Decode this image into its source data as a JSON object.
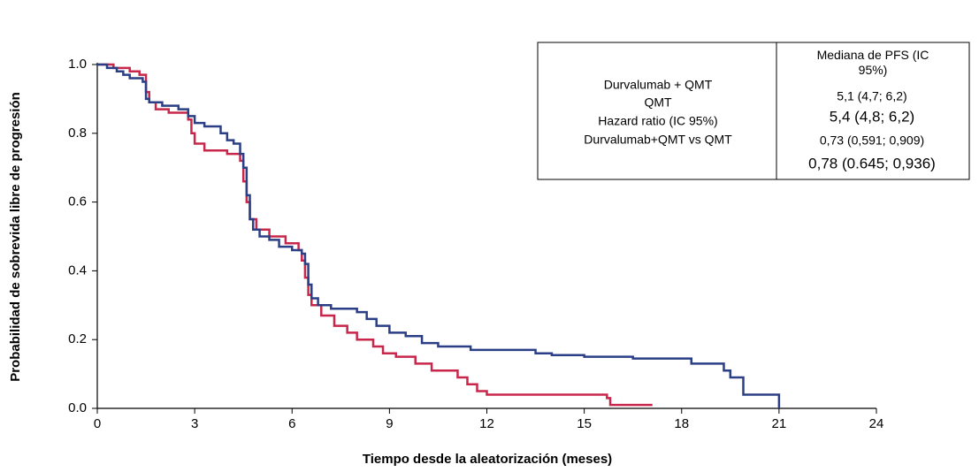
{
  "chart_data": {
    "type": "step",
    "xlabel": "Tiempo desde la aleatorización (meses)",
    "ylabel": "Probabilidad de sobrevida libre de progresión",
    "xlim": [
      0,
      24
    ],
    "ylim": [
      0,
      1
    ],
    "xticks": [
      0,
      3,
      6,
      9,
      12,
      15,
      18,
      21,
      24
    ],
    "yticks": [
      {
        "value": 0,
        "label": "0.0"
      },
      {
        "value": 0.2,
        "label": "0.2"
      },
      {
        "value": 0.4,
        "label": "0.4"
      },
      {
        "value": 0.6,
        "label": "0.6"
      },
      {
        "value": 0.8,
        "label": "0.8"
      },
      {
        "value": 1,
        "label": "1.0"
      }
    ],
    "series": [
      {
        "name": "Durvalumab + QMT",
        "color": "#2b3f86",
        "x": [
          0,
          0.3,
          0.6,
          0.8,
          1.0,
          1.4,
          1.5,
          1.6,
          2.0,
          2.5,
          2.8,
          3.0,
          3.3,
          3.8,
          4.0,
          4.2,
          4.4,
          4.5,
          4.6,
          4.7,
          4.8,
          5.0,
          5.3,
          5.6,
          6.0,
          6.3,
          6.4,
          6.5,
          6.6,
          6.8,
          7.2,
          8.0,
          8.3,
          8.6,
          9.0,
          9.5,
          10.0,
          10.5,
          11.5,
          13.5,
          14.0,
          15.0,
          16.5,
          18.3,
          19.3,
          19.5,
          19.9,
          21.0
        ],
        "values": [
          1.0,
          0.99,
          0.98,
          0.97,
          0.96,
          0.95,
          0.9,
          0.89,
          0.88,
          0.87,
          0.85,
          0.83,
          0.82,
          0.8,
          0.78,
          0.77,
          0.74,
          0.7,
          0.62,
          0.55,
          0.52,
          0.5,
          0.49,
          0.47,
          0.46,
          0.45,
          0.42,
          0.36,
          0.32,
          0.3,
          0.29,
          0.28,
          0.26,
          0.24,
          0.22,
          0.21,
          0.19,
          0.18,
          0.17,
          0.16,
          0.155,
          0.15,
          0.145,
          0.13,
          0.11,
          0.09,
          0.04,
          0.0
        ]
      },
      {
        "name": "QMT",
        "color": "#c8264a",
        "x": [
          0,
          0.5,
          1.0,
          1.3,
          1.5,
          1.6,
          1.8,
          2.2,
          2.8,
          2.9,
          3.0,
          3.3,
          4.0,
          4.4,
          4.5,
          4.6,
          4.7,
          4.9,
          5.3,
          5.8,
          6.2,
          6.3,
          6.4,
          6.5,
          6.6,
          6.9,
          7.3,
          7.7,
          8.0,
          8.5,
          8.8,
          9.2,
          9.8,
          10.3,
          11.1,
          11.4,
          11.7,
          12.0,
          15.7,
          15.8,
          17.1
        ],
        "values": [
          1.0,
          0.99,
          0.98,
          0.97,
          0.92,
          0.89,
          0.87,
          0.86,
          0.84,
          0.8,
          0.77,
          0.75,
          0.74,
          0.72,
          0.66,
          0.6,
          0.55,
          0.52,
          0.5,
          0.48,
          0.46,
          0.43,
          0.38,
          0.33,
          0.3,
          0.27,
          0.24,
          0.22,
          0.2,
          0.18,
          0.16,
          0.15,
          0.13,
          0.11,
          0.09,
          0.07,
          0.05,
          0.04,
          0.03,
          0.01,
          0.01
        ]
      }
    ],
    "legend_table": {
      "header": "Mediana de PFS (IC 95%)",
      "left_rows": [
        "Hazard ratio (IC 95%)",
        "Durvalumab+QMT vs QMT"
      ],
      "right_rows": [
        "5,1 (4,7; 6,2)",
        "5,4 (4,8; 6,2)",
        "0,73 (0,591; 0,909)",
        "0,78 (0.645; 0,936)"
      ]
    }
  }
}
